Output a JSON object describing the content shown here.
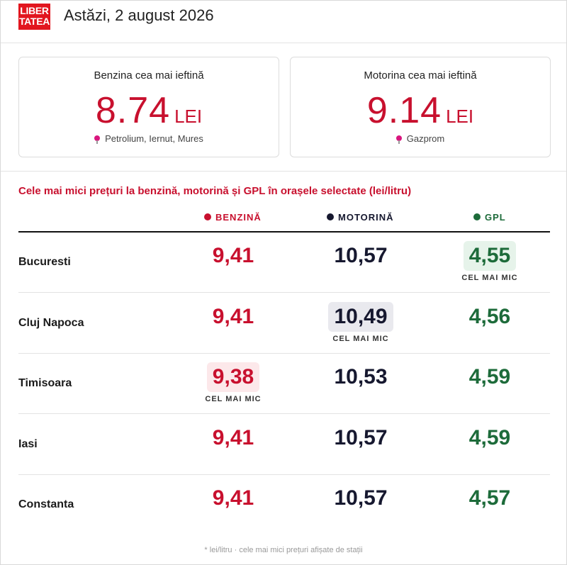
{
  "header": {
    "logo_line1": "LIBER",
    "logo_line2": "TATEA",
    "date": "Astăzi, 2 august 2026"
  },
  "cards": {
    "benzina": {
      "title": "Benzina cea mai ieftină",
      "value": "8.74",
      "unit": "LEI",
      "location": "Petrolium, Iernut, Mures"
    },
    "motorina": {
      "title": "Motorina cea mai ieftină",
      "value": "9.14",
      "unit": "LEI",
      "location": "Gazprom"
    }
  },
  "section_title": "Cele mai mici prețuri la benzină, motorină și GPL în orașele selectate (lei/litru)",
  "columns": {
    "benzina": "BENZINĂ",
    "motorina": "MOTORINĂ",
    "gpl": "GPL"
  },
  "colors": {
    "benzina": "#c8102e",
    "motorina": "#16182f",
    "gpl": "#1d6b3a"
  },
  "lowest_label": "CEL MAI MIC",
  "rows": [
    {
      "city": "Bucuresti",
      "benzina": "9,41",
      "motorina": "10,57",
      "gpl": "4,55",
      "lowest": "gpl"
    },
    {
      "city": "Cluj Napoca",
      "benzina": "9,41",
      "motorina": "10,49",
      "gpl": "4,56",
      "lowest": "motorina"
    },
    {
      "city": "Timisoara",
      "benzina": "9,38",
      "motorina": "10,53",
      "gpl": "4,59",
      "lowest": "benzina"
    },
    {
      "city": "Iasi",
      "benzina": "9,41",
      "motorina": "10,57",
      "gpl": "4,59",
      "lowest": ""
    },
    {
      "city": "Constanta",
      "benzina": "9,41",
      "motorina": "10,57",
      "gpl": "4,57",
      "lowest": ""
    }
  ],
  "footnote": "* lei/litru · cele mai mici prețuri afișate de stații"
}
